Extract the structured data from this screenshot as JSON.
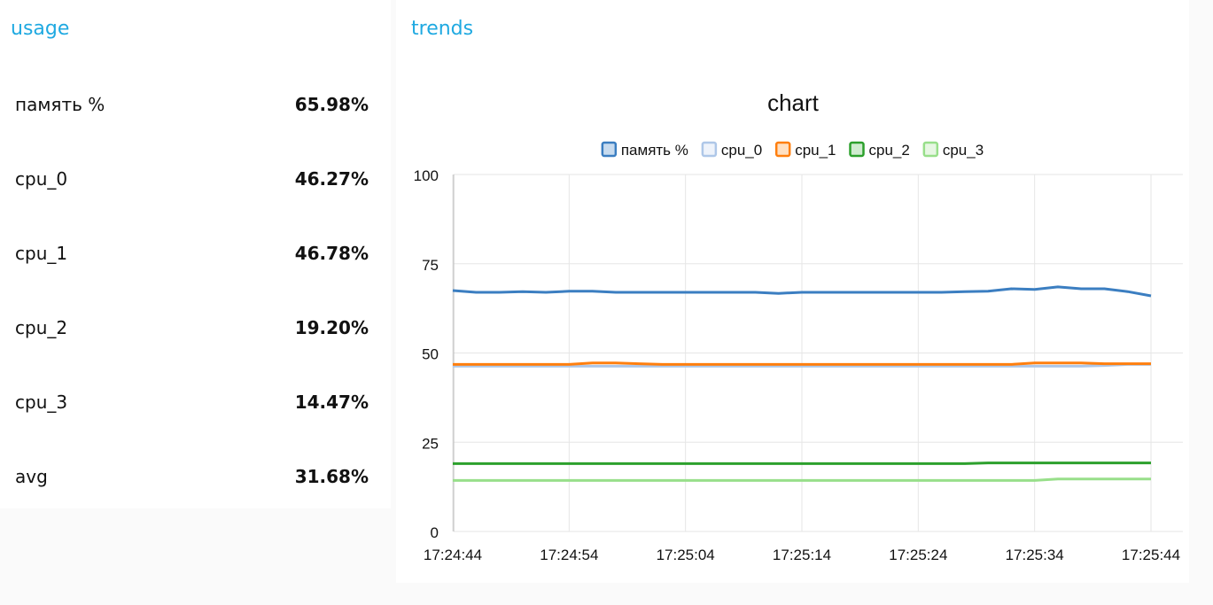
{
  "usage": {
    "title": "usage",
    "rows": [
      {
        "label": "память %",
        "value": "65.98%"
      },
      {
        "label": "cpu_0",
        "value": "46.27%"
      },
      {
        "label": "cpu_1",
        "value": "46.78%"
      },
      {
        "label": "cpu_2",
        "value": "19.20%"
      },
      {
        "label": "cpu_3",
        "value": "14.47%"
      },
      {
        "label": "avg",
        "value": "31.68%"
      }
    ]
  },
  "trends": {
    "title": "trends"
  },
  "chart_data": {
    "type": "line",
    "title": "chart",
    "xlabel": "",
    "ylabel": "",
    "ylim": [
      0,
      100
    ],
    "yticks": [
      0,
      25,
      50,
      75,
      100
    ],
    "xlim": [
      "17:24:44",
      "17:25:44"
    ],
    "xticks": [
      "17:24:44",
      "17:24:54",
      "17:25:04",
      "17:25:14",
      "17:25:24",
      "17:25:34",
      "17:25:44"
    ],
    "grid": true,
    "legend_position": "top",
    "x": [
      "17:24:44",
      "17:24:46",
      "17:24:48",
      "17:24:50",
      "17:24:52",
      "17:24:54",
      "17:24:56",
      "17:24:58",
      "17:25:00",
      "17:25:02",
      "17:25:04",
      "17:25:06",
      "17:25:08",
      "17:25:10",
      "17:25:12",
      "17:25:14",
      "17:25:16",
      "17:25:18",
      "17:25:20",
      "17:25:22",
      "17:25:24",
      "17:25:26",
      "17:25:28",
      "17:25:30",
      "17:25:32",
      "17:25:34",
      "17:25:36",
      "17:25:38",
      "17:25:40",
      "17:25:42",
      "17:25:44"
    ],
    "series": [
      {
        "name": "память %",
        "color": "#3b7ec1",
        "fill": "#c7dbef",
        "values": [
          67.5,
          67.0,
          67.0,
          67.2,
          67.0,
          67.3,
          67.3,
          67.0,
          67.0,
          67.0,
          67.0,
          67.0,
          67.0,
          67.0,
          66.7,
          67.0,
          67.0,
          67.0,
          67.0,
          67.0,
          67.0,
          67.0,
          67.2,
          67.3,
          68.0,
          67.8,
          68.5,
          68.0,
          68.0,
          67.2,
          66.0
        ]
      },
      {
        "name": "cpu_0",
        "color": "#aec7e8",
        "fill": "#eef3fb",
        "values": [
          46.3,
          46.3,
          46.3,
          46.3,
          46.3,
          46.3,
          46.3,
          46.3,
          46.3,
          46.3,
          46.3,
          46.3,
          46.3,
          46.3,
          46.3,
          46.3,
          46.3,
          46.3,
          46.3,
          46.3,
          46.3,
          46.3,
          46.3,
          46.3,
          46.3,
          46.3,
          46.3,
          46.3,
          46.5,
          46.8,
          46.8
        ]
      },
      {
        "name": "cpu_1",
        "color": "#ff7f0e",
        "fill": "#ffe0c2",
        "values": [
          46.8,
          46.8,
          46.8,
          46.8,
          46.8,
          46.8,
          47.2,
          47.2,
          47.0,
          46.8,
          46.8,
          46.8,
          46.8,
          46.8,
          46.8,
          46.8,
          46.8,
          46.8,
          46.8,
          46.8,
          46.8,
          46.8,
          46.8,
          46.8,
          46.8,
          47.2,
          47.2,
          47.2,
          47.0,
          47.0,
          47.0
        ]
      },
      {
        "name": "cpu_2",
        "color": "#2ca02c",
        "fill": "#cfeccf",
        "values": [
          19.0,
          19.0,
          19.0,
          19.0,
          19.0,
          19.0,
          19.0,
          19.0,
          19.0,
          19.0,
          19.0,
          19.0,
          19.0,
          19.0,
          19.0,
          19.0,
          19.0,
          19.0,
          19.0,
          19.0,
          19.0,
          19.0,
          19.0,
          19.2,
          19.2,
          19.2,
          19.2,
          19.2,
          19.2,
          19.2,
          19.2
        ]
      },
      {
        "name": "cpu_3",
        "color": "#98df8a",
        "fill": "#e7f7e3",
        "values": [
          14.3,
          14.3,
          14.3,
          14.3,
          14.3,
          14.3,
          14.3,
          14.3,
          14.3,
          14.3,
          14.3,
          14.3,
          14.3,
          14.3,
          14.3,
          14.3,
          14.3,
          14.3,
          14.3,
          14.3,
          14.3,
          14.3,
          14.3,
          14.3,
          14.3,
          14.3,
          14.7,
          14.7,
          14.7,
          14.7,
          14.7
        ]
      }
    ]
  }
}
